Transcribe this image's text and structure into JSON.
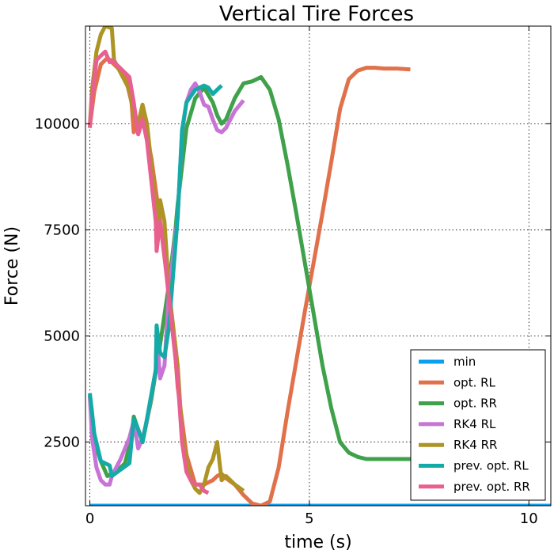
{
  "chart_data": {
    "type": "line",
    "title": "Vertical Tire Forces",
    "xlabel": "time (s)",
    "ylabel": "Force (N)",
    "xlim": [
      -0.1,
      10.5
    ],
    "ylim": [
      1000,
      12300
    ],
    "xticks": [
      0,
      5,
      10
    ],
    "xtick_labels": [
      "0",
      "5",
      "10"
    ],
    "yticks": [
      2500,
      5000,
      7500,
      10000
    ],
    "ytick_labels": [
      "2500",
      "5000",
      "7500",
      "10000"
    ],
    "grid": true,
    "legend": "bottom-right",
    "series": [
      {
        "name": "min",
        "color": "#0aa0f0",
        "x": [
          0,
          10.5
        ],
        "y": [
          1000,
          1000
        ]
      },
      {
        "name": "opt. RL",
        "color": "#e0714a",
        "x": [
          0,
          0.1,
          0.25,
          0.4,
          0.6,
          0.8,
          0.95,
          1.0,
          1.2,
          1.4,
          1.6,
          1.8,
          1.95,
          2.0,
          2.2,
          2.4,
          2.6,
          2.8,
          2.9,
          3.0,
          3.1,
          3.3,
          3.5,
          3.7,
          3.9,
          4.1,
          4.3,
          4.5,
          4.7,
          4.9,
          5.1,
          5.3,
          5.5,
          5.7,
          5.9,
          6.1,
          6.3,
          6.5,
          6.7,
          7.0,
          7.3
        ],
        "y": [
          9950,
          10750,
          11400,
          11550,
          11350,
          11150,
          10500,
          9800,
          10200,
          9200,
          7700,
          6000,
          4500,
          3800,
          2200,
          1500,
          1500,
          1600,
          1700,
          1750,
          1650,
          1500,
          1250,
          1050,
          1000,
          1100,
          1900,
          3200,
          4400,
          5600,
          6750,
          7900,
          9100,
          10350,
          11050,
          11250,
          11320,
          11320,
          11300,
          11300,
          11280
        ]
      },
      {
        "name": "opt. RR",
        "color": "#3fa14a",
        "x": [
          0,
          0.1,
          0.25,
          0.4,
          0.6,
          0.8,
          0.95,
          1.0,
          1.2,
          1.4,
          1.6,
          1.8,
          1.95,
          2.0,
          2.2,
          2.4,
          2.6,
          2.8,
          2.9,
          3.0,
          3.1,
          3.3,
          3.5,
          3.7,
          3.9,
          4.1,
          4.3,
          4.5,
          4.7,
          4.9,
          5.1,
          5.3,
          5.5,
          5.7,
          5.9,
          6.1,
          6.3,
          6.5,
          6.7,
          7.0,
          7.3
        ],
        "y": [
          3600,
          2500,
          2050,
          1700,
          1800,
          2000,
          2600,
          3100,
          2500,
          3500,
          4800,
          6200,
          7500,
          8100,
          9900,
          10600,
          10850,
          10500,
          10200,
          10000,
          10100,
          10600,
          10950,
          11000,
          11100,
          10800,
          10100,
          9050,
          7900,
          6700,
          5500,
          4300,
          3300,
          2500,
          2250,
          2150,
          2100,
          2100,
          2100,
          2100,
          2100
        ]
      },
      {
        "name": "RK4 RL",
        "color": "#c774d6",
        "x": [
          0,
          0.05,
          0.15,
          0.25,
          0.35,
          0.45,
          0.5,
          0.7,
          0.9,
          1.0,
          1.1,
          1.2,
          1.3,
          1.5,
          1.52,
          1.6,
          1.7,
          1.8,
          2.0,
          2.1,
          2.2,
          2.3,
          2.4,
          2.5,
          2.6,
          2.7,
          2.8,
          2.9,
          3.0,
          3.1,
          3.2,
          3.3,
          3.5
        ],
        "y": [
          3600,
          2600,
          1900,
          1600,
          1500,
          1500,
          1700,
          2100,
          2600,
          3000,
          2350,
          2600,
          3000,
          4200,
          5100,
          4000,
          4300,
          6000,
          7800,
          9800,
          10500,
          10800,
          10950,
          10750,
          10450,
          10400,
          10100,
          9850,
          9800,
          9900,
          10100,
          10300,
          10550
        ]
      },
      {
        "name": "RK4 RR",
        "color": "#ad9424",
        "x": [
          0,
          0.05,
          0.15,
          0.25,
          0.35,
          0.5,
          0.55,
          0.7,
          0.9,
          1.0,
          1.1,
          1.2,
          1.3,
          1.5,
          1.52,
          1.6,
          1.7,
          1.8,
          2.0,
          2.1,
          2.2,
          2.3,
          2.4,
          2.5,
          2.6,
          2.7,
          2.8,
          2.9,
          3.0,
          3.1,
          3.2,
          3.3,
          3.5
        ],
        "y": [
          9950,
          10800,
          11700,
          12100,
          12300,
          12250,
          11500,
          11200,
          10800,
          10200,
          10000,
          10450,
          10000,
          8100,
          7200,
          8200,
          7700,
          6100,
          4300,
          2700,
          2050,
          1600,
          1400,
          1300,
          1500,
          1900,
          2100,
          2500,
          1600,
          1700,
          1600,
          1500,
          1350
        ]
      },
      {
        "name": "prev. opt. RL",
        "color": "#14aaa8",
        "x": [
          0,
          0.05,
          0.1,
          0.25,
          0.45,
          0.5,
          0.7,
          0.9,
          1.0,
          1.1,
          1.2,
          1.3,
          1.5,
          1.52,
          1.6,
          1.7,
          1.8,
          2.0,
          2.1,
          2.2,
          2.3,
          2.4,
          2.5,
          2.6,
          2.7,
          2.8,
          2.9,
          3.0
        ],
        "y": [
          3650,
          3200,
          2700,
          2050,
          1950,
          1700,
          1850,
          2000,
          3050,
          2800,
          2500,
          3050,
          4200,
          5250,
          4600,
          4500,
          5200,
          7800,
          9850,
          10500,
          10650,
          10800,
          10850,
          10900,
          10850,
          10700,
          10800,
          10900
        ]
      },
      {
        "name": "prev. opt. RR",
        "color": "#e8608e",
        "x": [
          0,
          0.05,
          0.15,
          0.25,
          0.35,
          0.45,
          0.5,
          0.7,
          0.9,
          1.0,
          1.1,
          1.2,
          1.3,
          1.5,
          1.52,
          1.6,
          1.7,
          1.8,
          2.0,
          2.1,
          2.2,
          2.3,
          2.4,
          2.5,
          2.6,
          2.7
        ],
        "y": [
          9900,
          10600,
          11500,
          11600,
          11700,
          11450,
          11500,
          11300,
          11100,
          10500,
          9750,
          10100,
          9600,
          7700,
          7000,
          7700,
          6900,
          5900,
          4000,
          2500,
          1800,
          1600,
          1500,
          1500,
          1350,
          1300
        ]
      }
    ]
  }
}
